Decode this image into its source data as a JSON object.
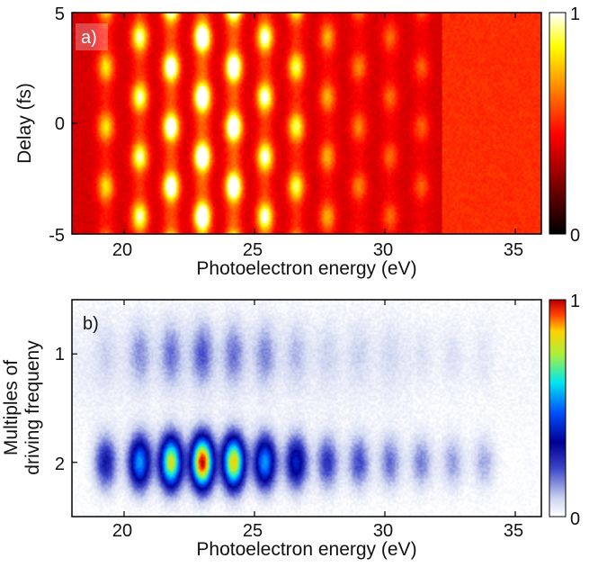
{
  "chart_data": [
    {
      "type": "heatmap",
      "panel_label": "a)",
      "xlabel": "Photoelectron energy (eV)",
      "ylabel": "Delay (fs)",
      "xlim": [
        18,
        36
      ],
      "ylim": [
        -5,
        5
      ],
      "x_ticks": [
        "20",
        "25",
        "30",
        "35"
      ],
      "x_tick_values": [
        20,
        25,
        30,
        35
      ],
      "y_ticks": [
        "-5",
        "0",
        "5"
      ],
      "y_tick_values": [
        -5,
        0,
        5
      ],
      "colorbar": {
        "ticks": [
          "0",
          "1"
        ],
        "min": 0,
        "max": 1,
        "colormap": "hot"
      },
      "peak_energies": [
        19.3,
        20.6,
        21.8,
        23.0,
        24.2,
        25.4,
        26.6,
        27.8,
        29.0,
        30.2,
        31.4
      ],
      "peak_intensities": [
        0.45,
        0.62,
        0.8,
        0.92,
        0.88,
        0.68,
        0.55,
        0.35,
        0.28,
        0.24,
        0.22
      ],
      "oscillation_period_fs": 2.7,
      "background_level": 0.38,
      "high_energy_plateau": {
        "from": 32.2,
        "to": 36,
        "level": 0.52
      },
      "grid": false
    },
    {
      "type": "heatmap",
      "panel_label": "b)",
      "xlabel": "Photoelectron energy (eV)",
      "ylabel": "Multiples of driving frequeny",
      "xlim": [
        18,
        36
      ],
      "ylim": [
        0.5,
        2.5
      ],
      "x_ticks": [
        "20",
        "25",
        "30",
        "35"
      ],
      "x_tick_values": [
        20,
        25,
        30,
        35
      ],
      "y_ticks": [
        "1",
        "2"
      ],
      "y_tick_values": [
        1,
        2
      ],
      "colorbar": {
        "ticks": [
          "0",
          "1"
        ],
        "min": 0,
        "max": 1,
        "colormap": "jet-white"
      },
      "peak_energies": [
        19.3,
        20.6,
        21.8,
        23.0,
        24.2,
        25.4,
        26.6,
        27.8,
        29.0,
        30.2,
        31.4,
        32.6,
        33.8
      ],
      "first_harmonic_amplitude": [
        0.3,
        0.55,
        0.8,
        1.0,
        0.85,
        0.55,
        0.4,
        0.25,
        0.22,
        0.18,
        0.16,
        0.13,
        0.12
      ],
      "second_harmonic_amplitude": [
        0.05,
        0.12,
        0.15,
        0.18,
        0.15,
        0.13,
        0.08,
        0.05,
        0.05,
        0.04,
        0.04,
        0.04,
        0.03
      ],
      "grid": false
    }
  ]
}
